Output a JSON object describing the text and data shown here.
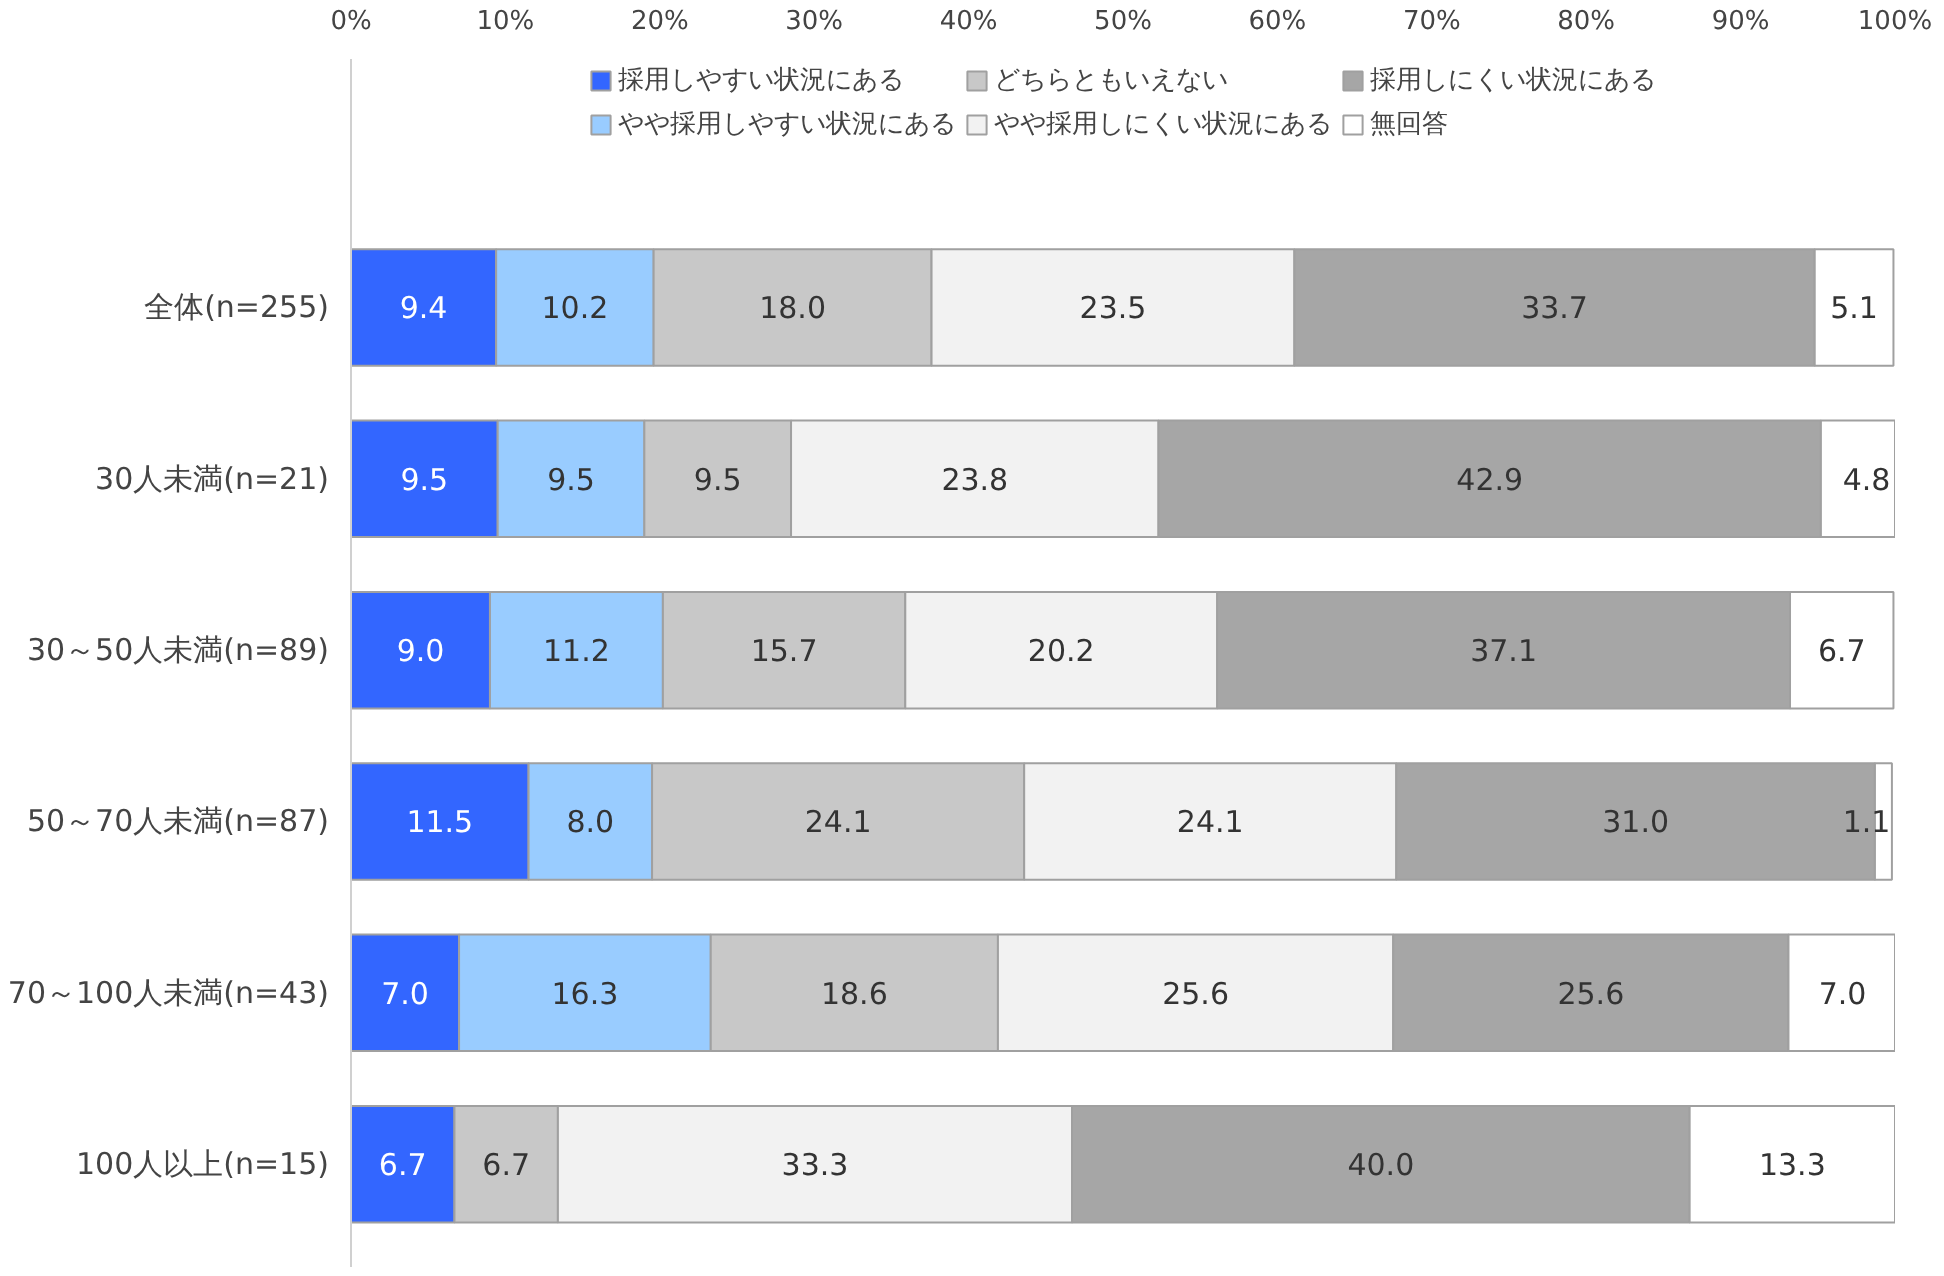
{
  "chart_data": {
    "type": "bar",
    "orientation": "horizontal",
    "stacked": true,
    "legend": "top",
    "grid": false,
    "categories": [
      "全体(n=255)",
      "30人未満(n=21)",
      "30～50人未満(n=89)",
      "50～70人未満(n=87)",
      "70～100人未満(n=43)",
      "100人以上(n=15)"
    ],
    "xlim": [
      0,
      100
    ],
    "xticks": [
      {
        "value": 0,
        "label": "0%"
      },
      {
        "value": 10,
        "label": "10%"
      },
      {
        "value": 20,
        "label": "20%"
      },
      {
        "value": 30,
        "label": "30%"
      },
      {
        "value": 40,
        "label": "40%"
      },
      {
        "value": 50,
        "label": "50%"
      },
      {
        "value": 60,
        "label": "60%"
      },
      {
        "value": 70,
        "label": "70%"
      },
      {
        "value": 80,
        "label": "80%"
      },
      {
        "value": 90,
        "label": "90%"
      },
      {
        "value": 100,
        "label": "100%"
      }
    ],
    "series": [
      {
        "name": "採用しやすい状況にある",
        "color": "#3366ff",
        "values": [
          9.4,
          9.5,
          9.0,
          11.5,
          7.0,
          6.7
        ],
        "value_labels": [
          "9.4",
          "9.5",
          "9.0",
          "11.5",
          "7.0",
          "6.7"
        ]
      },
      {
        "name": "やや採用しやすい状況にある",
        "color": "#99ccff",
        "values": [
          10.2,
          9.5,
          11.2,
          8.0,
          16.3,
          null
        ],
        "value_labels": [
          "10.2",
          "9.5",
          "11.2",
          "8.0",
          "16.3",
          null
        ]
      },
      {
        "name": "どちらともいえない",
        "color": "#c8c8c8",
        "values": [
          18.0,
          9.5,
          15.7,
          24.1,
          18.6,
          6.7
        ],
        "value_labels": [
          "18.0",
          "9.5",
          "15.7",
          "24.1",
          "18.6",
          "6.7"
        ]
      },
      {
        "name": "やや採用しにくい状況にある",
        "color": "#f2f2f2",
        "values": [
          23.5,
          23.8,
          20.2,
          24.1,
          25.6,
          33.3
        ],
        "value_labels": [
          "23.5",
          "23.8",
          "20.2",
          "24.1",
          "25.6",
          "33.3"
        ]
      },
      {
        "name": "採用しにくい状況にある",
        "color": "#a6a6a6",
        "values": [
          33.7,
          42.9,
          37.1,
          31.0,
          25.6,
          40.0
        ],
        "value_labels": [
          "33.7",
          "42.9",
          "37.1",
          "31.0",
          "25.6",
          "40.0"
        ]
      },
      {
        "name": "無回答",
        "color": "#ffffff",
        "values": [
          5.1,
          4.8,
          6.7,
          1.1,
          7.0,
          13.3
        ],
        "value_labels": [
          "5.1",
          "4.8",
          "6.7",
          "1.1",
          "7.0",
          "13.3"
        ]
      }
    ]
  }
}
